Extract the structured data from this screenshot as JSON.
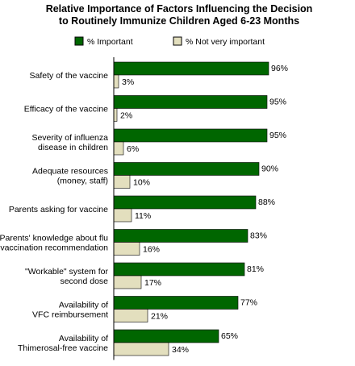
{
  "chart_data": {
    "type": "bar",
    "orientation": "horizontal",
    "title": [
      "Relative Importance of Factors Influencing the Decision",
      "to Routinely Immunize Children Aged 6-23 Months"
    ],
    "legend_placement": "top",
    "xlim": [
      0,
      100
    ],
    "grid": false,
    "categories": [
      [
        "Safety of the vaccine"
      ],
      [
        "Efficacy of the vaccine"
      ],
      [
        "Severity of influenza",
        "disease in children"
      ],
      [
        "Adequate resources",
        "(money, staff)"
      ],
      [
        "Parents asking for vaccine"
      ],
      [
        "Parents' knowledge about flu",
        "vaccination recommendation"
      ],
      [
        "\"Workable\" system for",
        "second dose"
      ],
      [
        "Availability of",
        "VFC reimbursement"
      ],
      [
        "Availability of",
        "Thimerosal-free vaccine"
      ]
    ],
    "series": [
      {
        "name": "% Important",
        "color": "#006600",
        "values": [
          96,
          95,
          95,
          90,
          88,
          83,
          81,
          77,
          65
        ],
        "labels": [
          "96%",
          "95%",
          "95%",
          "90%",
          "88%",
          "83%",
          "81%",
          "77%",
          "65%"
        ]
      },
      {
        "name": "% Not very important",
        "color": "#e3dfbe",
        "values": [
          3,
          2,
          6,
          10,
          11,
          16,
          17,
          21,
          34
        ],
        "labels": [
          "3%",
          "2%",
          "6%",
          "10%",
          "11%",
          "16%",
          "17%",
          "21%",
          "34%"
        ]
      }
    ]
  }
}
